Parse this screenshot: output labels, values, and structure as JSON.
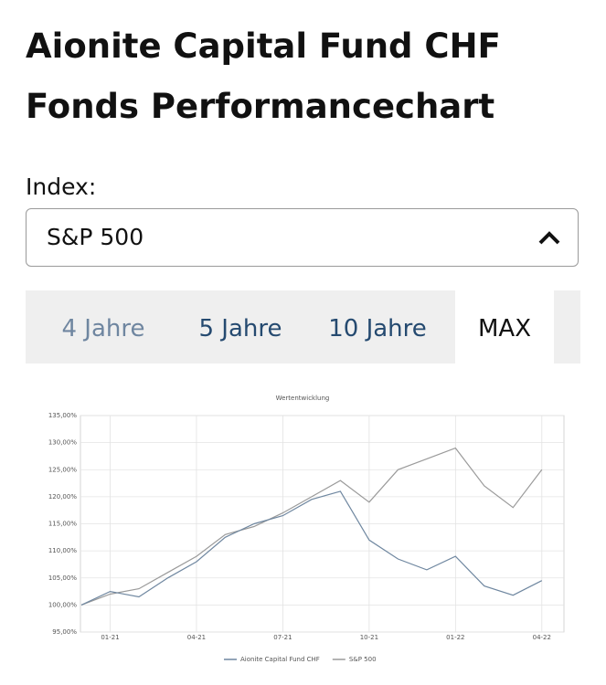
{
  "header": {
    "title": [
      "Aionite Capital Fund CHF",
      "Fonds Performancechart"
    ]
  },
  "index_select": {
    "label": "Index:",
    "value": "S&P 500"
  },
  "tabs": {
    "items": [
      "4 Jahre",
      "5 Jahre",
      "10 Jahre",
      "MAX"
    ],
    "active": 3
  },
  "chart_data": {
    "type": "line",
    "title": "Wertentwicklung",
    "x": [
      null,
      "01-21",
      null,
      null,
      "04-21",
      null,
      null,
      "07-21",
      null,
      null,
      "10-21",
      null,
      null,
      "01-22",
      null,
      null,
      "04-22"
    ],
    "series": [
      {
        "name": "Aionite Capital Fund CHF",
        "color": "#6f87a0",
        "values": [
          100,
          102.5,
          101.5,
          105,
          108,
          112.5,
          115,
          116.5,
          119.5,
          121,
          112,
          108.5,
          106.5,
          109,
          103.5,
          101.8,
          104.5
        ]
      },
      {
        "name": "S&P 500",
        "color": "#9a9a9a",
        "values": [
          100,
          102,
          103,
          106,
          109,
          113,
          114.5,
          117,
          120,
          123,
          119,
          125,
          127,
          129,
          122,
          118,
          125
        ]
      }
    ],
    "ylim": [
      95,
      135
    ],
    "yticks": [
      {
        "value": 95,
        "label": "95,00%"
      },
      {
        "value": 100,
        "label": "100,00%"
      },
      {
        "value": 105,
        "label": "105,00%"
      },
      {
        "value": 110,
        "label": "110,00%"
      },
      {
        "value": 115,
        "label": "115,00%"
      },
      {
        "value": 120,
        "label": "120,00%"
      },
      {
        "value": 125,
        "label": "125,00%"
      },
      {
        "value": 130,
        "label": "130,00%"
      },
      {
        "value": 135,
        "label": "135,00%"
      }
    ],
    "grid": true,
    "legend": "bottom"
  }
}
